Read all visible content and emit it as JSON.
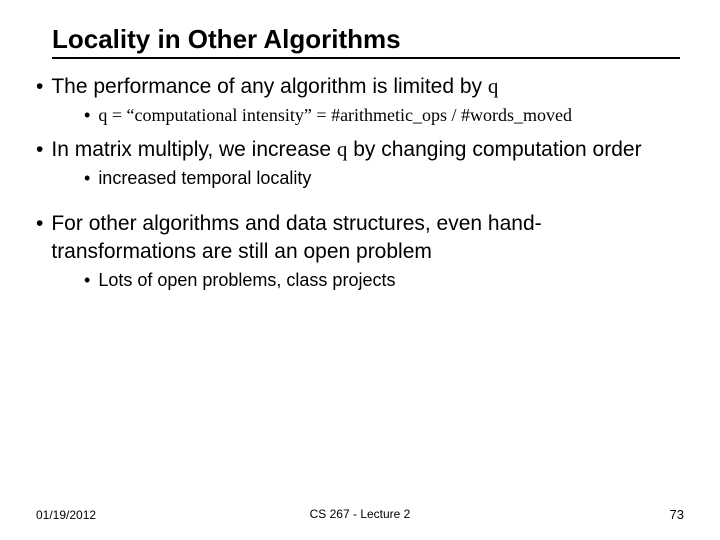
{
  "title": "Locality in Other Algorithms",
  "bullets": {
    "b1": {
      "pre": "The performance of any algorithm is limited by ",
      "q": "q"
    },
    "b1_sub": {
      "q": "q",
      "rest": " = “computational intensity” = #arithmetic_ops / #words_moved"
    },
    "b2": {
      "pre": "In matrix multiply, we increase ",
      "q": "q",
      "post": " by changing computation order"
    },
    "b2_sub": "increased temporal locality",
    "b3": "For other algorithms and data structures, even hand-transformations are still an open problem",
    "b3_sub": "Lots of open problems, class projects"
  },
  "footer": {
    "date": "01/19/2012",
    "course": "CS 267 - Lecture 2",
    "page": "73"
  }
}
